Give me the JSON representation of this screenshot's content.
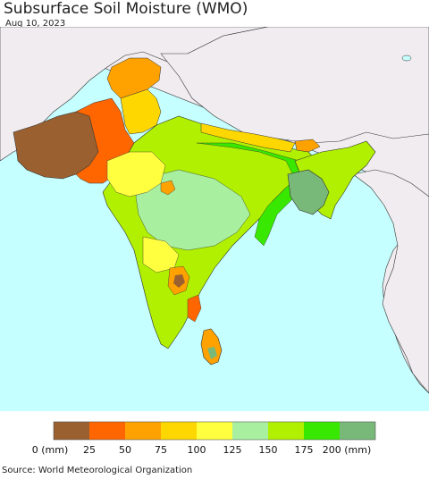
{
  "title": "Subsurface Soil Moisture (WMO)",
  "date": "Aug 10, 2023",
  "source": "Source: World Meteorological Organization",
  "legend": {
    "colors": [
      "#9a6030",
      "#ff6600",
      "#ffa200",
      "#ffd700",
      "#ffff40",
      "#a8f0a0",
      "#b0f000",
      "#38e800",
      "#78b878"
    ],
    "labels": [
      "0 (mm)",
      "25",
      "50",
      "75",
      "100",
      "125",
      "150",
      "175",
      "200 (mm)"
    ]
  },
  "colors": {
    "ocean": "#c6ffff",
    "outside_land": "#f0ecf0",
    "border": "#333333"
  }
}
